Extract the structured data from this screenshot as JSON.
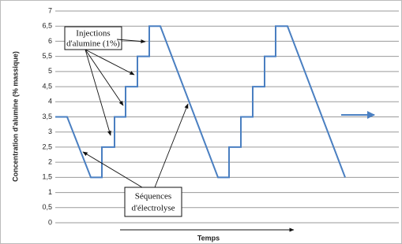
{
  "chart_data": {
    "type": "line",
    "y_label": "Concentration d'alumine (% massique)",
    "x_label": "Temps",
    "x": [
      0,
      15,
      45,
      59,
      59,
      75,
      75,
      89,
      89,
      104,
      104,
      119,
      119,
      133,
      206,
      220,
      220,
      235,
      235,
      250,
      250,
      265,
      265,
      279,
      279,
      294,
      367
    ],
    "values": [
      3.5,
      3.5,
      1.5,
      1.5,
      2.5,
      2.5,
      3.5,
      3.5,
      4.5,
      4.5,
      5.5,
      5.5,
      6.5,
      6.5,
      1.5,
      1.5,
      2.5,
      2.5,
      3.5,
      3.5,
      4.5,
      4.5,
      5.5,
      5.5,
      6.5,
      6.5,
      1.5
    ],
    "color": "#4a7fc1",
    "xlim": [
      0,
      435
    ],
    "ylim": [
      0,
      7
    ],
    "yticks": [
      0,
      {
        "value": 0.5,
        "label": "0,5"
      },
      1,
      {
        "value": 1.5,
        "label": "1,5"
      },
      2,
      {
        "value": 2.5,
        "label": "2,5"
      },
      3,
      {
        "value": 3.5,
        "label": "3,5"
      },
      4,
      {
        "value": 4.5,
        "label": "4,5"
      },
      5,
      {
        "value": 5.5,
        "label": "5,5"
      },
      6,
      {
        "value": 6.5,
        "label": "6,5"
      },
      7
    ],
    "grid": true,
    "annotations": [
      {
        "lines": [
          "Injections",
          "d'alumine (1%)"
        ]
      },
      {
        "lines": [
          "Séquences",
          "d'électrolyse"
        ]
      }
    ]
  }
}
